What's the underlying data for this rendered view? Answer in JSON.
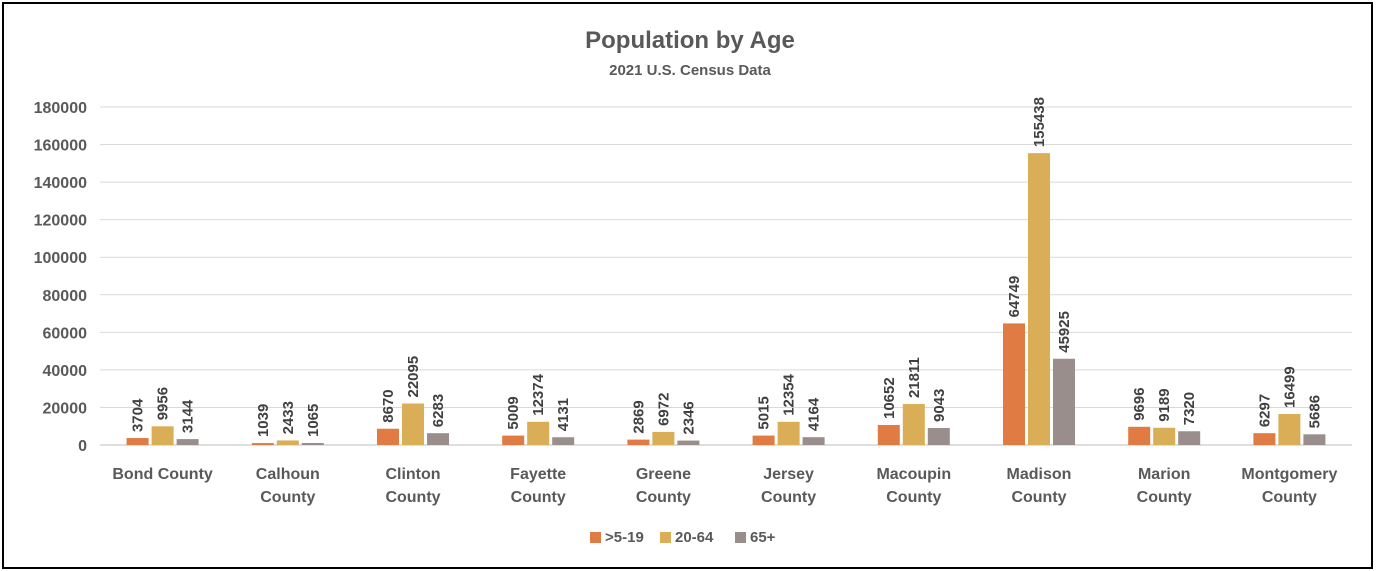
{
  "chart_data": {
    "type": "bar",
    "title": "Population by Age",
    "subtitle": "2021 U.S. Census Data",
    "xlabel": "",
    "ylabel": "",
    "ylim": [
      0,
      180000
    ],
    "yticks": [
      0,
      20000,
      40000,
      60000,
      80000,
      100000,
      120000,
      140000,
      160000,
      180000
    ],
    "grid": true,
    "legend_position": "bottom",
    "categories": [
      [
        "Bond County"
      ],
      [
        "Calhoun",
        "County"
      ],
      [
        "Clinton",
        "County"
      ],
      [
        "Fayette",
        "County"
      ],
      [
        "Greene",
        "County"
      ],
      [
        "Jersey",
        "County"
      ],
      [
        "Macoupin",
        "County"
      ],
      [
        "Madison",
        "County"
      ],
      [
        "Marion",
        "County"
      ],
      [
        "Montgomery",
        "County"
      ]
    ],
    "series": [
      {
        "name": ">5-19",
        "color": "#E07B44",
        "values": [
          3704,
          1039,
          8670,
          5009,
          2869,
          5015,
          10652,
          64749,
          9696,
          6297
        ]
      },
      {
        "name": "20-64",
        "color": "#D9AE57",
        "values": [
          9956,
          2433,
          22095,
          12374,
          6972,
          12354,
          21811,
          155438,
          9189,
          16499
        ]
      },
      {
        "name": "65+",
        "color": "#9A8E8C",
        "values": [
          3144,
          1065,
          6283,
          4131,
          2346,
          4164,
          9043,
          45925,
          7320,
          5686
        ]
      }
    ]
  }
}
